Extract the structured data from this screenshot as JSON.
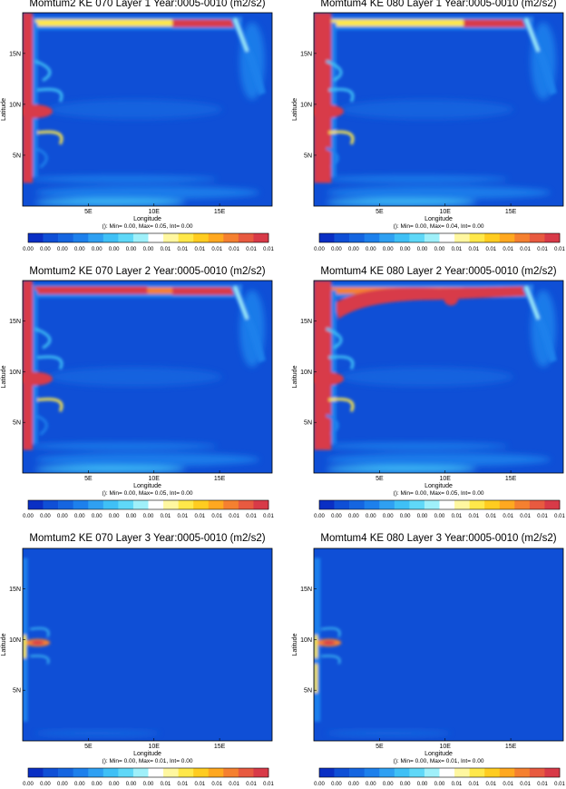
{
  "figure": {
    "colorbar_ticks": [
      "0.00",
      "0.00",
      "0.00",
      "0.00",
      "0.00",
      "0.00",
      "0.00",
      "0.00",
      "0.01",
      "0.01",
      "0.01",
      "0.01",
      "0.01",
      "0.01",
      "0.01"
    ],
    "colorbar_colors": [
      "#0a2fc4",
      "#0f4fd6",
      "#1565e0",
      "#1d80ec",
      "#2fa0f2",
      "#3fc0f6",
      "#5fd8f8",
      "#9ff0fa",
      "#ffffff",
      "#fff7a0",
      "#ffe84a",
      "#ffcc20",
      "#ffa820",
      "#f58030",
      "#e85a40",
      "#d83a48"
    ],
    "panels": [
      {
        "title": "Momtum2 KE 070 Layer 1 Year:0005-0010 (m2/s2)",
        "xlabel": "Longitude",
        "ylabel": "Latitude",
        "stats": "(): Min= 0.00, Max= 0.05, Int= 0.00",
        "xticks": [
          "5E",
          "10E",
          "15E"
        ],
        "yticks": [
          "5N",
          "10N",
          "15N"
        ]
      },
      {
        "title": "Momtum4 KE 080  Layer 1 Year:0005-0010 (m2/s2)",
        "xlabel": "Longitude",
        "ylabel": "Latitude",
        "stats": "(): Min= 0.00, Max= 0.04, Int= 0.00",
        "xticks": [
          "5E",
          "10E",
          "15E"
        ],
        "yticks": [
          "5N",
          "10N",
          "15N"
        ]
      },
      {
        "title": "Momtum2 KE 070 Layer 2 Year:0005-0010 (m2/s2)",
        "xlabel": "Longitude",
        "ylabel": "Latitude",
        "stats": "(): Min= 0.00, Max= 0.05, Int= 0.00",
        "xticks": [
          "5E",
          "10E",
          "15E"
        ],
        "yticks": [
          "5N",
          "10N",
          "15N"
        ]
      },
      {
        "title": "Momtum4 KE 080 Layer 2 Year:0005-0010 (m2/s2)",
        "xlabel": "Longitude",
        "ylabel": "Latitude",
        "stats": "(): Min= 0.00, Max= 0.05, Int= 0.00",
        "xticks": [
          "5E",
          "10E",
          "15E"
        ],
        "yticks": [
          "5N",
          "10N",
          "15N"
        ]
      },
      {
        "title": "Momtum2 KE 070 Layer 3 Year:0005-0010 (m2/s2)",
        "xlabel": "Longitude",
        "ylabel": "Latitude",
        "stats": "(): Min= 0.00, Max= 0.01, Int= 0.00",
        "xticks": [
          "5E",
          "10E",
          "15E"
        ],
        "yticks": [
          "5N",
          "10N",
          "15N"
        ]
      },
      {
        "title": "Momtum4 KE 080 Layer 3 Year:0005-0010 (m2/s2)",
        "xlabel": "Longitude",
        "ylabel": "Latitude",
        "stats": "(): Min= 0.00, Max= 0.01, Int= 0.00",
        "xticks": [
          "5E",
          "10E",
          "15E"
        ],
        "yticks": [
          "5N",
          "10N",
          "15N"
        ]
      }
    ]
  },
  "chart_data": [
    {
      "type": "heatmap",
      "title": "Momtum2 KE 070 Layer 1 Year:0005-0010 (m2/s2)",
      "xlabel": "Longitude",
      "ylabel": "Latitude",
      "xticks": [
        "5E",
        "10E",
        "15E"
      ],
      "yticks": [
        "5N",
        "10N",
        "15N"
      ],
      "xlim": [
        0,
        19
      ],
      "ylim": [
        0,
        19
      ],
      "min": 0.0,
      "max": 0.05,
      "colorbar": [
        0.0,
        0.01
      ]
    },
    {
      "type": "heatmap",
      "title": "Momtum4 KE 080  Layer 1 Year:0005-0010 (m2/s2)",
      "xlabel": "Longitude",
      "ylabel": "Latitude",
      "xticks": [
        "5E",
        "10E",
        "15E"
      ],
      "yticks": [
        "5N",
        "10N",
        "15N"
      ],
      "xlim": [
        0,
        19
      ],
      "ylim": [
        0,
        19
      ],
      "min": 0.0,
      "max": 0.04,
      "colorbar": [
        0.0,
        0.01
      ]
    },
    {
      "type": "heatmap",
      "title": "Momtum2 KE 070 Layer 2 Year:0005-0010 (m2/s2)",
      "xlabel": "Longitude",
      "ylabel": "Latitude",
      "xticks": [
        "5E",
        "10E",
        "15E"
      ],
      "yticks": [
        "5N",
        "10N",
        "15N"
      ],
      "xlim": [
        0,
        19
      ],
      "ylim": [
        0,
        19
      ],
      "min": 0.0,
      "max": 0.05,
      "colorbar": [
        0.0,
        0.01
      ]
    },
    {
      "type": "heatmap",
      "title": "Momtum4 KE 080 Layer 2 Year:0005-0010 (m2/s2)",
      "xlabel": "Longitude",
      "ylabel": "Latitude",
      "xticks": [
        "5E",
        "10E",
        "15E"
      ],
      "yticks": [
        "5N",
        "10N",
        "15N"
      ],
      "xlim": [
        0,
        19
      ],
      "ylim": [
        0,
        19
      ],
      "min": 0.0,
      "max": 0.05,
      "colorbar": [
        0.0,
        0.01
      ]
    },
    {
      "type": "heatmap",
      "title": "Momtum2 KE 070 Layer 3 Year:0005-0010 (m2/s2)",
      "xlabel": "Longitude",
      "ylabel": "Latitude",
      "xticks": [
        "5E",
        "10E",
        "15E"
      ],
      "yticks": [
        "5N",
        "10N",
        "15N"
      ],
      "xlim": [
        0,
        19
      ],
      "ylim": [
        0,
        19
      ],
      "min": 0.0,
      "max": 0.01,
      "colorbar": [
        0.0,
        0.01
      ]
    },
    {
      "type": "heatmap",
      "title": "Momtum4 KE 080 Layer 3 Year:0005-0010 (m2/s2)",
      "xlabel": "Longitude",
      "ylabel": "Latitude",
      "xticks": [
        "5E",
        "10E",
        "15E"
      ],
      "yticks": [
        "5N",
        "10N",
        "15N"
      ],
      "xlim": [
        0,
        19
      ],
      "ylim": [
        0,
        19
      ],
      "min": 0.0,
      "max": 0.01,
      "colorbar": [
        0.0,
        0.01
      ]
    }
  ]
}
